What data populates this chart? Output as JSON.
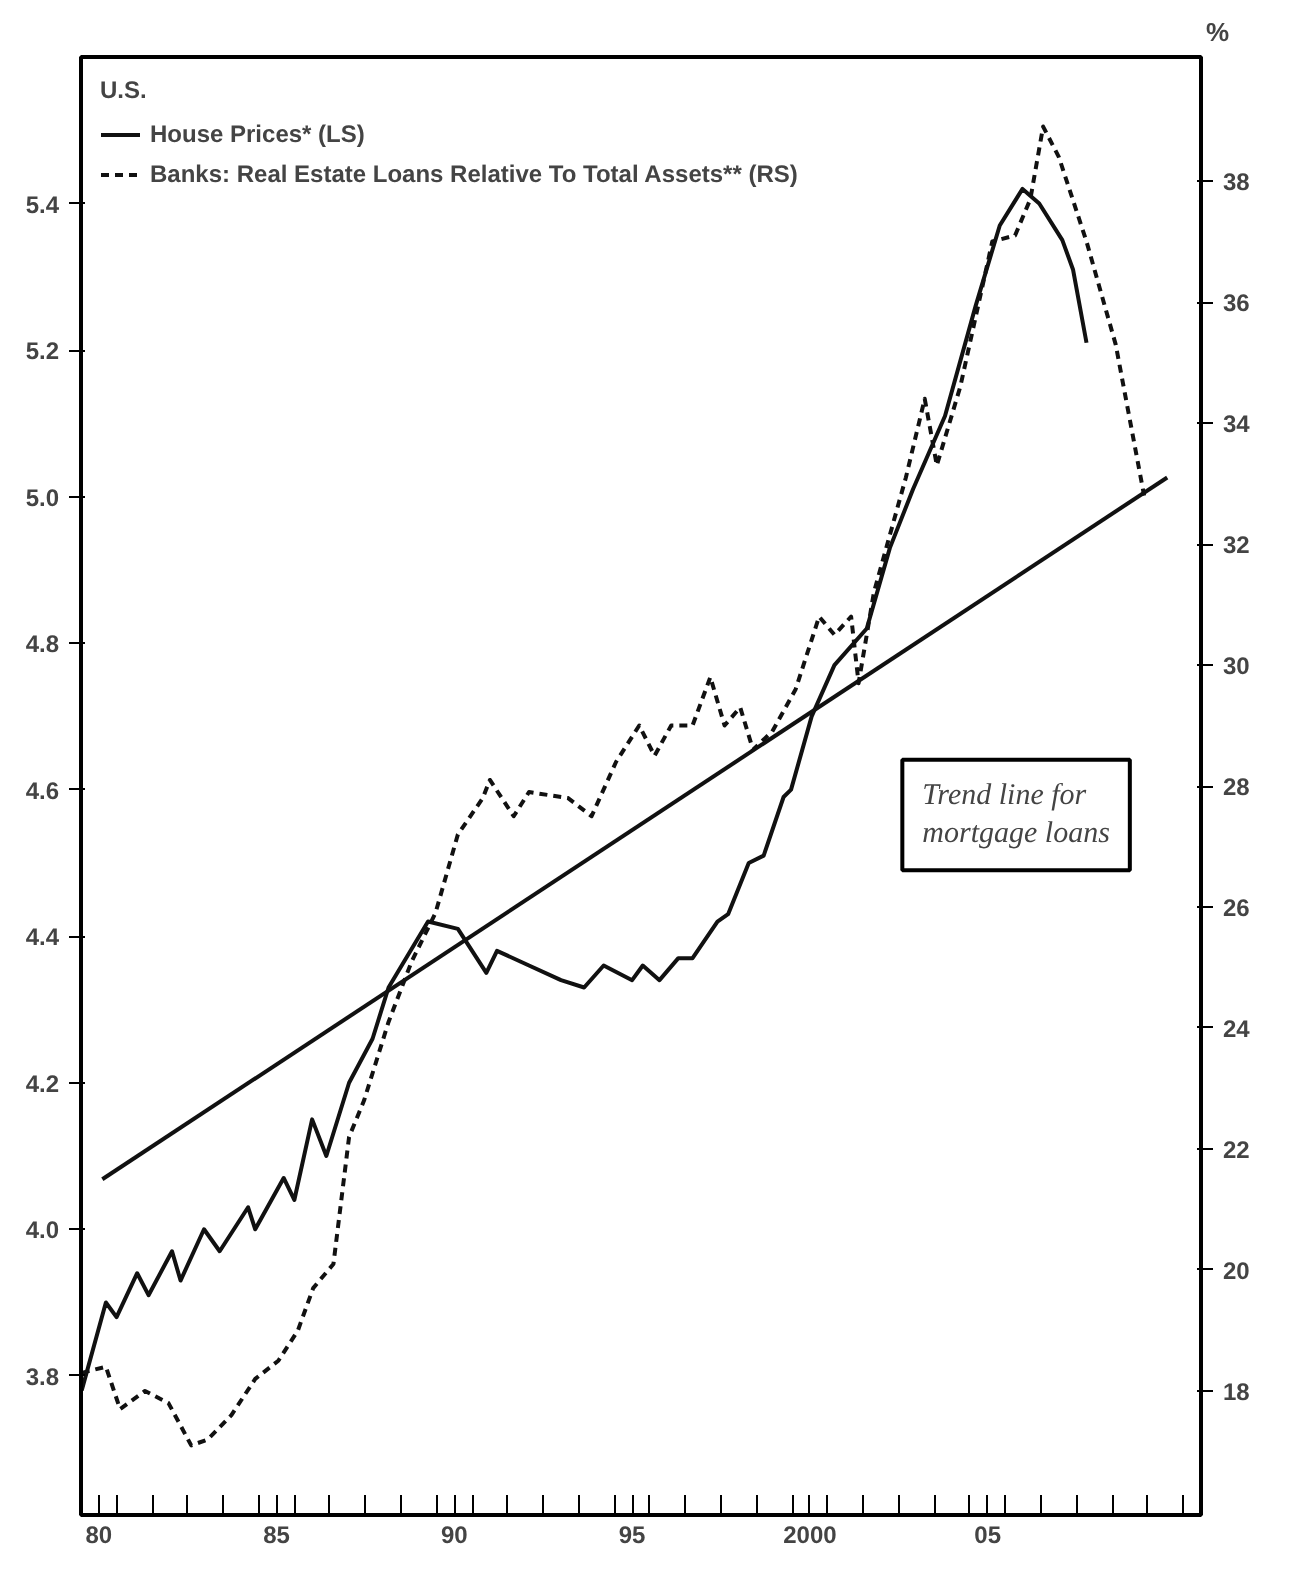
{
  "chart_data": {
    "type": "line",
    "legend_title": "U.S.",
    "y2label": "%",
    "legend": "top left",
    "grid": false,
    "marker": "none",
    "xlim": [
      1979.5,
      2011.0
    ],
    "ylim": [
      3.61,
      5.6
    ],
    "y2lim": [
      15.95,
      40.05
    ],
    "xticks": [
      {
        "value": 1980,
        "label": "80"
      },
      {
        "value": 1985,
        "label": "85"
      },
      {
        "value": 1990,
        "label": "90"
      },
      {
        "value": 1995,
        "label": "95"
      },
      {
        "value": 2000,
        "label": "2000"
      },
      {
        "value": 2005,
        "label": "05"
      },
      {
        "value": 1980.5,
        "label": null
      },
      {
        "value": 1981.5,
        "label": null
      },
      {
        "value": 1982.5,
        "label": null
      },
      {
        "value": 1983.5,
        "label": null
      },
      {
        "value": 1984.5,
        "label": null
      },
      {
        "value": 1985.5,
        "label": null
      },
      {
        "value": 1986.5,
        "label": null
      },
      {
        "value": 1987.5,
        "label": null
      },
      {
        "value": 1988.5,
        "label": null
      },
      {
        "value": 1989.5,
        "label": null
      },
      {
        "value": 1990.5,
        "label": null
      },
      {
        "value": 1991.5,
        "label": null
      },
      {
        "value": 1992.5,
        "label": null
      },
      {
        "value": 1993.5,
        "label": null
      },
      {
        "value": 1994.5,
        "label": null
      },
      {
        "value": 1995.5,
        "label": null
      },
      {
        "value": 1996.5,
        "label": null
      },
      {
        "value": 1997.5,
        "label": null
      },
      {
        "value": 1998.5,
        "label": null
      },
      {
        "value": 1999.5,
        "label": null
      },
      {
        "value": 2000.5,
        "label": null
      },
      {
        "value": 2001.5,
        "label": null
      },
      {
        "value": 2002.5,
        "label": null
      },
      {
        "value": 2003.5,
        "label": null
      },
      {
        "value": 2004.5,
        "label": null
      },
      {
        "value": 2005.5,
        "label": null
      },
      {
        "value": 2006.5,
        "label": null
      },
      {
        "value": 2007.5,
        "label": null
      },
      {
        "value": 2008.5,
        "label": null
      },
      {
        "value": 2009.5,
        "label": null
      },
      {
        "value": 2010.5,
        "label": null
      }
    ],
    "yticks": [
      3.8,
      {
        "value": 4.0,
        "label": "4.0"
      },
      4.2,
      4.4,
      4.6,
      4.8,
      {
        "value": 5.0,
        "label": "5.0"
      },
      5.2,
      5.4
    ],
    "y2ticks": [
      18,
      20,
      22,
      24,
      26,
      28,
      30,
      32,
      34,
      36,
      38
    ],
    "annotations": [
      "Trend line for mortgage loans"
    ],
    "series": [
      {
        "name": "House Prices* (LS)",
        "color": "#111111",
        "line_style": "solid",
        "x": [
          1979.52,
          1980.2,
          1980.5,
          1981.08,
          1981.4,
          1982.06,
          1982.3,
          1982.96,
          1983.4,
          1984.2,
          1984.4,
          1985.2,
          1985.5,
          1986.0,
          1986.4,
          1987.04,
          1987.7,
          1988.15,
          1989.26,
          1990.1,
          1990.9,
          1991.2,
          1992.1,
          1993.0,
          1993.65,
          1994.2,
          1995.0,
          1995.3,
          1995.77,
          1996.3,
          1996.7,
          1997.4,
          1997.7,
          1998.28,
          1998.7,
          1999.26,
          1999.47,
          2000.05,
          2000.69,
          2001.6,
          2002.25,
          2002.9,
          2003.8,
          2004.66,
          2005.34,
          2005.98,
          2006.45,
          2007.1,
          2007.4,
          2007.78
        ],
        "values": [
          3.78,
          3.9,
          3.88,
          3.94,
          3.91,
          3.97,
          3.93,
          4.0,
          3.97,
          4.03,
          4.0,
          4.07,
          4.04,
          4.15,
          4.1,
          4.2,
          4.26,
          4.33,
          4.42,
          4.41,
          4.35,
          4.38,
          4.36,
          4.34,
          4.33,
          4.36,
          4.34,
          4.36,
          4.34,
          4.37,
          4.37,
          4.42,
          4.43,
          4.5,
          4.51,
          4.59,
          4.6,
          4.7,
          4.77,
          4.82,
          4.93,
          5.01,
          5.11,
          5.26,
          5.37,
          5.42,
          5.4,
          5.35,
          5.31,
          5.21
        ]
      },
      {
        "name": "Banks: Real Estate Loans Relative To Total Assets** (RS)",
        "color": "#111111",
        "line_style": "dashed",
        "axis": "y2",
        "x": [
          1979.52,
          1980.2,
          1980.6,
          1981.3,
          1981.96,
          1982.6,
          1983.07,
          1983.73,
          1984.4,
          1985.05,
          1985.6,
          1986.03,
          1986.6,
          1987.04,
          1987.46,
          1988.15,
          1988.8,
          1989.47,
          1990.1,
          1990.8,
          1991.0,
          1991.67,
          1992.1,
          1993.2,
          1993.86,
          1994.55,
          1995.2,
          1995.63,
          1996.1,
          1996.7,
          1997.2,
          1997.6,
          1998.04,
          1998.4,
          1998.94,
          1999.6,
          2000.26,
          2000.69,
          2001.16,
          2001.37,
          2001.8,
          2002.7,
          2003.23,
          2003.57,
          2004.23,
          2005.13,
          2005.77,
          2006.2,
          2006.56,
          2007.0,
          2007.78,
          2008.6,
          2009.4
        ],
        "values": [
          18.3,
          18.4,
          17.7,
          18.0,
          17.8,
          17.1,
          17.2,
          17.6,
          18.2,
          18.5,
          19.0,
          19.7,
          20.1,
          22.2,
          22.8,
          24.1,
          25.1,
          25.9,
          27.2,
          27.8,
          28.1,
          27.5,
          27.9,
          27.8,
          27.5,
          28.4,
          29.0,
          28.5,
          29.0,
          29.0,
          29.8,
          29.0,
          29.3,
          28.6,
          28.9,
          29.6,
          30.8,
          30.5,
          30.8,
          29.7,
          31.2,
          33.1,
          34.4,
          33.3,
          34.6,
          37.0,
          37.1,
          37.7,
          38.9,
          38.4,
          37.0,
          35.3,
          32.8
        ]
      },
      {
        "type": "line",
        "color": "#111111",
        "line_style": "solid",
        "axis": "y2",
        "x": [
          1980.1,
          2010.05
        ],
        "values": [
          21.5,
          33.1
        ]
      }
    ]
  }
}
